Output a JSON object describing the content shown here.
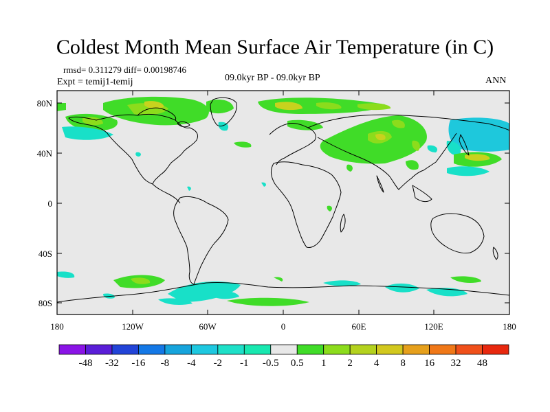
{
  "title": "Coldest Month Mean Surface Air Temperature (in C)",
  "stats": {
    "rmsd": "rmsd= 0.311279",
    "diff": "diff= 0.00198746"
  },
  "expt": "Expt = temij1-temij",
  "period": "09.0kyr BP - 09.0kyr BP",
  "season": "ANN",
  "axes": {
    "y_ticks": [
      "80N",
      "40N",
      "0",
      "40S",
      "80S"
    ],
    "x_ticks": [
      "180",
      "120W",
      "60W",
      "0",
      "60E",
      "120E",
      "180"
    ]
  },
  "colorbar": {
    "colors": [
      "#8a14e6",
      "#5a1ed8",
      "#2244d8",
      "#1478e6",
      "#16a4dc",
      "#1ec8e0",
      "#1ee0c8",
      "#18e8b0",
      "#e8e8e8",
      "#40dc28",
      "#8cdc1c",
      "#b4d21e",
      "#d2c81e",
      "#e6a01c",
      "#f07818",
      "#f0501a",
      "#e8280e"
    ],
    "labels": [
      "-48",
      "-32",
      "-16",
      "-8",
      "-4",
      "-2",
      "-1",
      "-0.5",
      "0.5",
      "1",
      "2",
      "4",
      "8",
      "16",
      "32",
      "48"
    ]
  },
  "colors": {
    "background": "#e8e8e8",
    "green": "#40dc28",
    "lime": "#8cdc1c",
    "yellow": "#c8d21e",
    "cyan": "#18e0c8",
    "teal": "#1ec8dc"
  }
}
